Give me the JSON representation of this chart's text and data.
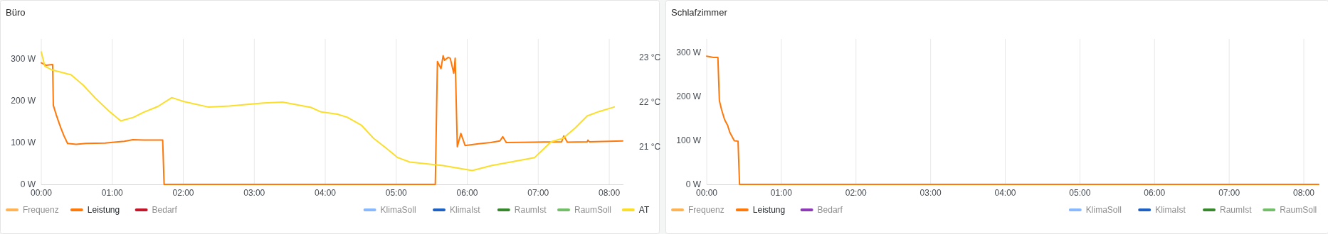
{
  "chart_data": [
    {
      "type": "line",
      "title": "Büro",
      "xlim": [
        0,
        8.2
      ],
      "xticks": [
        {
          "value": 0,
          "label": "00:00"
        },
        {
          "value": 1,
          "label": "01:00"
        },
        {
          "value": 2,
          "label": "02:00"
        },
        {
          "value": 3,
          "label": "03:00"
        },
        {
          "value": 4,
          "label": "04:00"
        },
        {
          "value": 5,
          "label": "05:00"
        },
        {
          "value": 6,
          "label": "06:00"
        },
        {
          "value": 7,
          "label": "07:00"
        },
        {
          "value": 8,
          "label": "08:00"
        }
      ],
      "ylim": [
        0,
        348
      ],
      "yticks": [
        {
          "value": 0,
          "label": "0 W"
        },
        {
          "value": 100,
          "label": "100 W"
        },
        {
          "value": 200,
          "label": "200 W"
        },
        {
          "value": 300,
          "label": "300 W"
        }
      ],
      "y2lim": [
        20.16,
        23.41
      ],
      "y2ticks": [
        {
          "value": 21,
          "label": "21 °C"
        },
        {
          "value": 22,
          "label": "22 °C"
        },
        {
          "value": 23,
          "label": "23 °C"
        }
      ],
      "grid": "x",
      "legend": "bottom",
      "series": [
        {
          "name": "Frequenz",
          "color": "#ffb357"
        },
        {
          "name": "Leistung",
          "color": "#ff780a",
          "x": [
            0,
            0.07,
            0.15,
            0.16,
            0.17,
            0.21,
            0.25,
            0.28,
            0.32,
            0.37,
            0.49,
            0.63,
            0.9,
            1.03,
            1.17,
            1.29,
            1.44,
            1.71,
            1.73,
            5.55,
            5.58,
            5.63,
            5.66,
            5.68,
            5.73,
            5.76,
            5.81,
            5.83,
            5.86,
            5.91,
            5.97,
            6.16,
            6.33,
            6.46,
            6.5,
            6.55,
            6.94,
            7.33,
            7.36,
            7.41,
            7.69,
            7.7,
            7.72,
            8.19
          ],
          "values": [
            291,
            285,
            287,
            287,
            189,
            167,
            147,
            133,
            116,
            98,
            96,
            98,
            99,
            101,
            103,
            107,
            106,
            106,
            0,
            0,
            294,
            277,
            308,
            297,
            304,
            302,
            266,
            302,
            90,
            122,
            93,
            97,
            100,
            104,
            114,
            100,
            101,
            102,
            116,
            101,
            102,
            106,
            102,
            104
          ]
        },
        {
          "name": "Bedarf",
          "color": "#c4162a"
        },
        {
          "name": "KlimaSoll",
          "color": "#8ab8ff",
          "axis": "y2"
        },
        {
          "name": "KlimaIst",
          "color": "#1f60c4",
          "axis": "y2"
        },
        {
          "name": "RaumIst",
          "color": "#37872d",
          "axis": "y2"
        },
        {
          "name": "RaumSoll",
          "color": "#73bf69",
          "axis": "y2"
        },
        {
          "name": "AT",
          "color": "#fade2a",
          "axis": "y2",
          "x": [
            0,
            0.05,
            0.15,
            0.42,
            0.59,
            0.76,
            0.96,
            1.12,
            1.3,
            1.44,
            1.64,
            1.84,
            2.01,
            2.35,
            2.65,
            3.13,
            3.4,
            3.8,
            3.94,
            4.17,
            4.31,
            4.51,
            4.68,
            4.85,
            5.02,
            5.19,
            5.66,
            6.07,
            6.34,
            6.95,
            7.18,
            7.35,
            7.52,
            7.69,
            7.86,
            8.07
          ],
          "values": [
            23.12,
            22.8,
            22.72,
            22.61,
            22.38,
            22.09,
            21.79,
            21.58,
            21.66,
            21.77,
            21.9,
            22.1,
            22.01,
            21.89,
            21.91,
            21.98,
            22.0,
            21.88,
            21.78,
            21.73,
            21.66,
            21.48,
            21.19,
            20.98,
            20.76,
            20.66,
            20.58,
            20.47,
            20.58,
            20.76,
            21.11,
            21.19,
            21.42,
            21.69,
            21.79,
            21.89
          ]
        }
      ]
    },
    {
      "type": "line",
      "title": "Schlafzimmer",
      "xlim": [
        0,
        8.2
      ],
      "xticks": [
        {
          "value": 0,
          "label": "00:00"
        },
        {
          "value": 1,
          "label": "01:00"
        },
        {
          "value": 2,
          "label": "02:00"
        },
        {
          "value": 3,
          "label": "03:00"
        },
        {
          "value": 4,
          "label": "04:00"
        },
        {
          "value": 5,
          "label": "05:00"
        },
        {
          "value": 6,
          "label": "06:00"
        },
        {
          "value": 7,
          "label": "07:00"
        },
        {
          "value": 8,
          "label": "08:00"
        }
      ],
      "ylim": [
        0,
        330
      ],
      "yticks": [
        {
          "value": 0,
          "label": "0 W"
        },
        {
          "value": 100,
          "label": "100 W"
        },
        {
          "value": 200,
          "label": "200 W"
        },
        {
          "value": 300,
          "label": "300 W"
        }
      ],
      "grid": "x",
      "legend": "bottom",
      "series": [
        {
          "name": "Frequenz",
          "color": "#ffb357"
        },
        {
          "name": "Leistung",
          "color": "#ff780a",
          "x": [
            0,
            0.09,
            0.15,
            0.17,
            0.2,
            0.24,
            0.28,
            0.31,
            0.37,
            0.42,
            0.44,
            8.2
          ],
          "values": [
            291,
            288,
            288,
            190,
            169,
            147,
            134,
            118,
            99,
            98,
            0,
            0
          ]
        },
        {
          "name": "Bedarf",
          "color": "#8f3bb8"
        },
        {
          "name": "KlimaSoll",
          "color": "#8ab8ff",
          "axis": "y2"
        },
        {
          "name": "KlimaIst",
          "color": "#1f60c4",
          "axis": "y2"
        },
        {
          "name": "RaumIst",
          "color": "#37872d",
          "axis": "y2"
        },
        {
          "name": "RaumSoll",
          "color": "#73bf69",
          "axis": "y2"
        }
      ]
    }
  ]
}
